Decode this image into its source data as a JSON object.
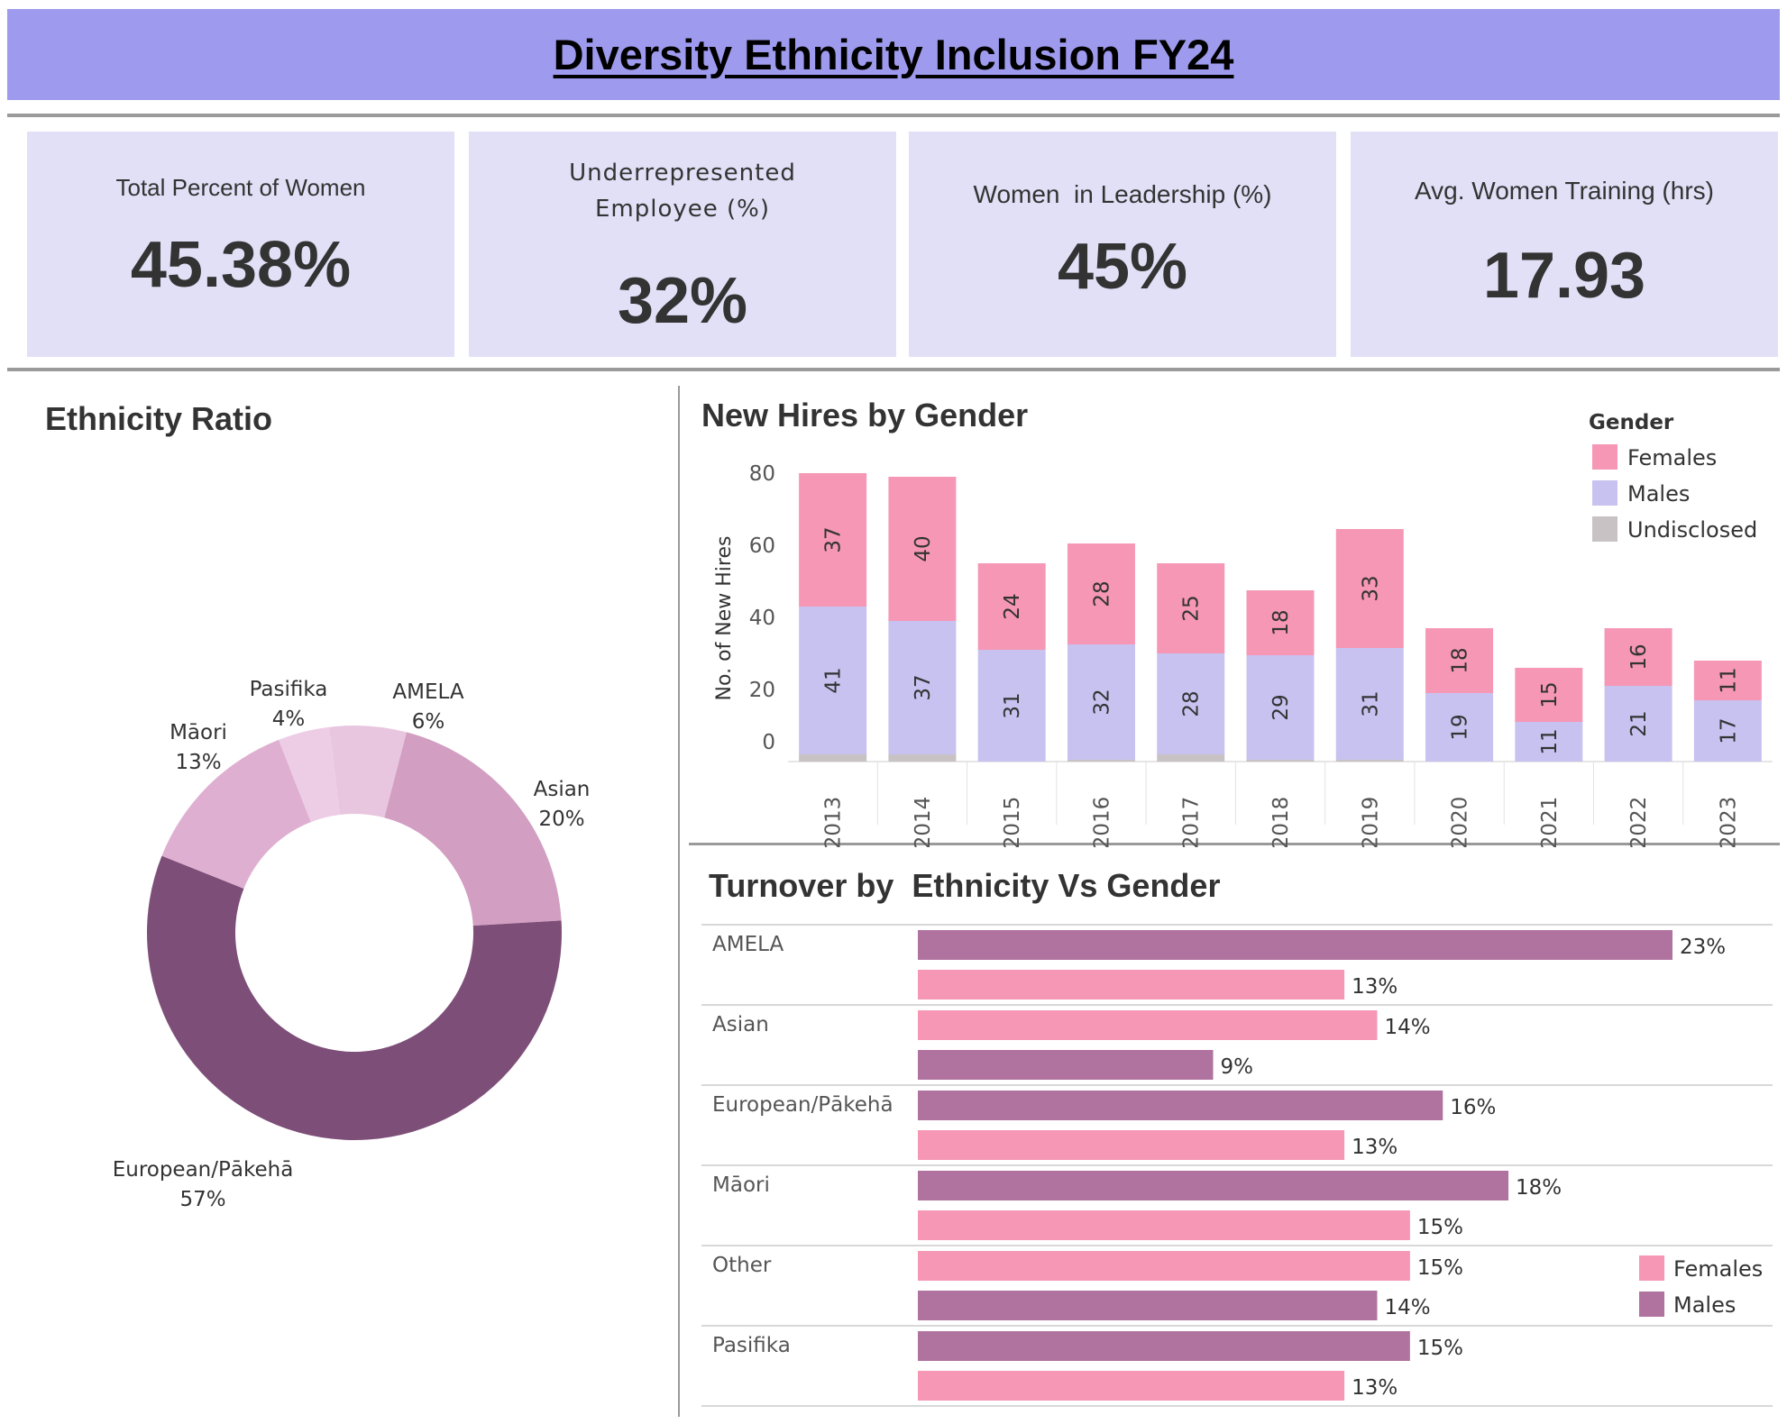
{
  "header": {
    "title": "Diversity Ethnicity Inclusion FY24"
  },
  "kpis": [
    {
      "label": "Total Percent of Women",
      "value": "45.38%"
    },
    {
      "label": "Underrepresented Employee (%)",
      "label_line1": "Underrepresented",
      "label_line2": "Employee (%)",
      "value": "32%"
    },
    {
      "label": "Women  in Leadership (%)",
      "value": "45%"
    },
    {
      "label": "Avg. Women Training (hrs)",
      "value": "17.93"
    }
  ],
  "sections": {
    "ethnicity_ratio": "Ethnicity Ratio",
    "new_hires": "New Hires by Gender",
    "turnover": "Turnover by  Ethnicity Vs Gender"
  },
  "colors": {
    "females": "#f597b5",
    "males_hires": "#c8c2f0",
    "undisclosed": "#c8c2c4",
    "males_turnover": "#b0739f",
    "banner": "#9e9bee",
    "kpi_bg": "#e1e0f7"
  },
  "chart_data": [
    {
      "type": "pie",
      "title": "Ethnicity Ratio",
      "donut": true,
      "slices": [
        {
          "label": "AMELA",
          "value": 6,
          "value_label": "6%",
          "color": "#e8c6df"
        },
        {
          "label": "Asian",
          "value": 20,
          "value_label": "20%",
          "color": "#d29ec1"
        },
        {
          "label": "European/Pākehā",
          "value": 57,
          "value_label": "57%",
          "color": "#7d4e78"
        },
        {
          "label": "Māori",
          "value": 13,
          "value_label": "13%",
          "color": "#dfafd1"
        },
        {
          "label": "Pasifika",
          "value": 4,
          "value_label": "4%",
          "color": "#edcde6"
        }
      ]
    },
    {
      "type": "bar",
      "stacked": true,
      "title": "New Hires by Gender",
      "ylabel": "No. of New Hires",
      "ylim": [
        0,
        80
      ],
      "yticks": [
        0,
        20,
        40,
        60,
        80
      ],
      "categories": [
        "2013",
        "2014",
        "2015",
        "2016",
        "2017",
        "2018",
        "2019",
        "2020",
        "2021",
        "2022",
        "2023"
      ],
      "legend_title": "Gender",
      "legend_position": "top-right",
      "series": [
        {
          "name": "Undisclosed",
          "values": [
            2,
            2,
            0,
            0.5,
            2,
            0.5,
            0.5,
            0,
            0,
            0,
            0
          ],
          "labels": false
        },
        {
          "name": "Males",
          "values": [
            41,
            37,
            31,
            32,
            28,
            29,
            31,
            19,
            11,
            21,
            17
          ],
          "labels": true
        },
        {
          "name": "Females",
          "values": [
            37,
            40,
            24,
            28,
            25,
            18,
            33,
            18,
            15,
            16,
            11
          ],
          "labels": true
        }
      ]
    },
    {
      "type": "bar",
      "orientation": "horizontal",
      "title": "Turnover by  Ethnicity Vs Gender",
      "xlim": [
        0,
        25
      ],
      "legend_position": "bottom-right",
      "legend": [
        {
          "name": "Females",
          "color": "#f597b5"
        },
        {
          "name": "Males",
          "color": "#b0739f"
        }
      ],
      "groups": [
        {
          "category": "AMELA",
          "bars": [
            {
              "series": "Males",
              "value": 23,
              "label": "23%"
            },
            {
              "series": "Females",
              "value": 13,
              "label": "13%"
            }
          ]
        },
        {
          "category": "Asian",
          "bars": [
            {
              "series": "Females",
              "value": 14,
              "label": "14%"
            },
            {
              "series": "Males",
              "value": 9,
              "label": "9%"
            }
          ]
        },
        {
          "category": "European/Pākehā",
          "bars": [
            {
              "series": "Males",
              "value": 16,
              "label": "16%"
            },
            {
              "series": "Females",
              "value": 13,
              "label": "13%"
            }
          ]
        },
        {
          "category": "Māori",
          "bars": [
            {
              "series": "Males",
              "value": 18,
              "label": "18%"
            },
            {
              "series": "Females",
              "value": 15,
              "label": "15%"
            }
          ]
        },
        {
          "category": "Other",
          "bars": [
            {
              "series": "Females",
              "value": 15,
              "label": "15%"
            },
            {
              "series": "Males",
              "value": 14,
              "label": "14%"
            }
          ]
        },
        {
          "category": "Pasifika",
          "bars": [
            {
              "series": "Males",
              "value": 15,
              "label": "15%"
            },
            {
              "series": "Females",
              "value": 13,
              "label": "13%"
            }
          ]
        }
      ]
    }
  ]
}
